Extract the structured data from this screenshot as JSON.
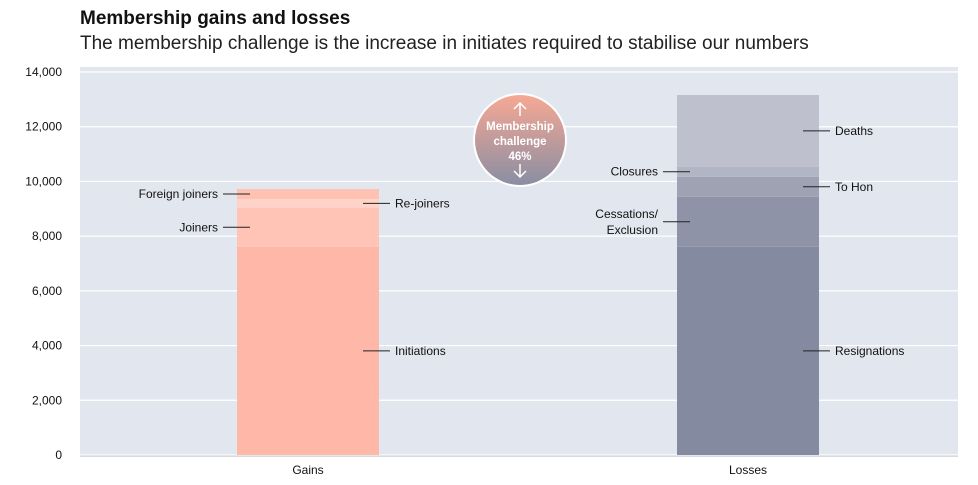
{
  "chart_data": {
    "type": "bar",
    "stacked": true,
    "title": "Membership gains and losses",
    "subtitle": "The membership challenge is the increase in initiates required to stabilise our numbers",
    "categories": [
      "Gains",
      "Losses"
    ],
    "ylim": [
      0,
      14000
    ],
    "yticks": [
      0,
      2000,
      4000,
      6000,
      8000,
      10000,
      12000,
      14000
    ],
    "ytick_labels": [
      "0",
      "2,000",
      "4,000",
      "6,000",
      "8,000",
      "10,000",
      "12,000",
      "14,000"
    ],
    "grid": true,
    "stacks": [
      {
        "category": "Gains",
        "segments": [
          {
            "name": "Initiations",
            "value": 7610,
            "color": "#ffb8a8",
            "label_side": "right"
          },
          {
            "name": "Joiners",
            "value": 1430,
            "color": "#ffc4b6",
            "label_side": "left"
          },
          {
            "name": "Re-joiners",
            "value": 320,
            "color": "#ffd3c7",
            "label_side": "right"
          },
          {
            "name": "Foreign joiners",
            "value": 360,
            "color": "#ffc1b2",
            "label_side": "left"
          }
        ]
      },
      {
        "category": "Losses",
        "segments": [
          {
            "name": "Resignations",
            "value": 7610,
            "color": "#848a9f",
            "label_side": "right"
          },
          {
            "name": "Cessations/\nExclusion",
            "value": 1830,
            "color": "#8e93a7",
            "label_side": "left"
          },
          {
            "name": "To Hon",
            "value": 730,
            "color": "#9ea2b3",
            "label_side": "right"
          },
          {
            "name": "Closures",
            "value": 370,
            "color": "#b2b5c3",
            "label_side": "left"
          },
          {
            "name": "Deaths",
            "value": 2620,
            "color": "#bec1cd",
            "label_side": "right"
          }
        ]
      }
    ],
    "annotation": {
      "line1": "Membership",
      "line2": "challenge",
      "value": "46%"
    }
  },
  "colors": {
    "background": "#e2e6ee",
    "grid": "#ffffff"
  }
}
